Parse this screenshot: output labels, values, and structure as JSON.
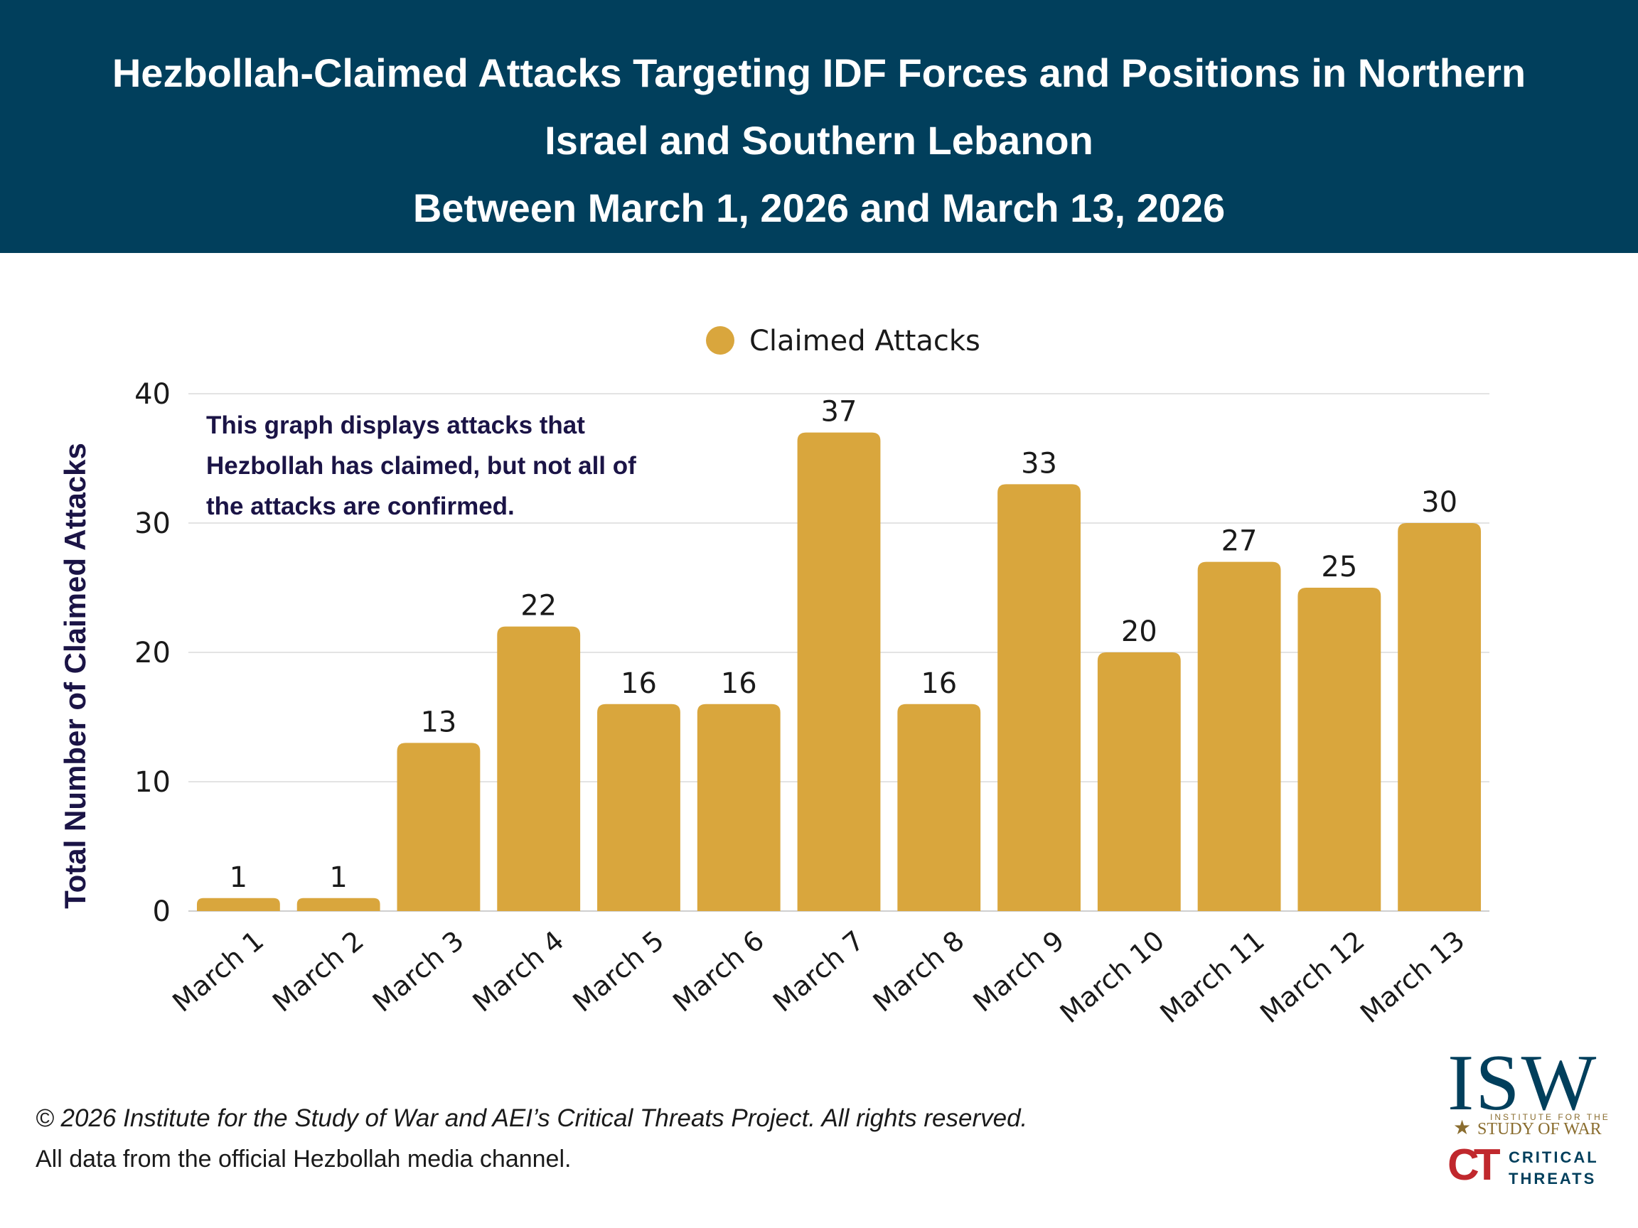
{
  "header": {
    "title_lines": [
      "Hezbollah-Claimed Attacks Targeting IDF Forces and Positions in Northern",
      "Israel and Southern Lebanon",
      "Between March 1, 2026 and March 13, 2026"
    ]
  },
  "chart_data": {
    "type": "bar",
    "title": "Hezbollah-Claimed Attacks Targeting IDF Forces and Positions in Northern Israel and Southern Lebanon Between March 1, 2026 and March 13, 2026",
    "categories": [
      "March 1",
      "March 2",
      "March 3",
      "March 4",
      "March 5",
      "March 6",
      "March 7",
      "March 8",
      "March 9",
      "March 10",
      "March 11",
      "March 12",
      "March 13"
    ],
    "series": [
      {
        "name": "Claimed Attacks",
        "values": [
          1,
          1,
          13,
          22,
          16,
          16,
          37,
          16,
          33,
          20,
          27,
          25,
          30
        ],
        "color": "#d9a63d"
      }
    ],
    "ylabel": "Total Number of Claimed Attacks",
    "xlabel": "",
    "ylim": [
      0,
      40
    ],
    "yticks": [
      0,
      10,
      20,
      30,
      40
    ],
    "grid": true,
    "legend_position": "top-center",
    "data_labels": true
  },
  "note": "This graph displays attacks that Hezbollah has claimed, but not all of the attacks are confirmed.",
  "footer": {
    "copyright": "© 2026 Institute for the Study of War and AEI’s Critical Threats Project. All rights reserved.",
    "source": "All data from the official Hezbollah media channel."
  },
  "logos": {
    "isw": {
      "main": "ISW",
      "line1": "INSTITUTE FOR THE",
      "line2": "STUDY OF WAR"
    },
    "ct": {
      "mark": "CT",
      "line1": "CRITICAL",
      "line2": "THREATS"
    }
  }
}
